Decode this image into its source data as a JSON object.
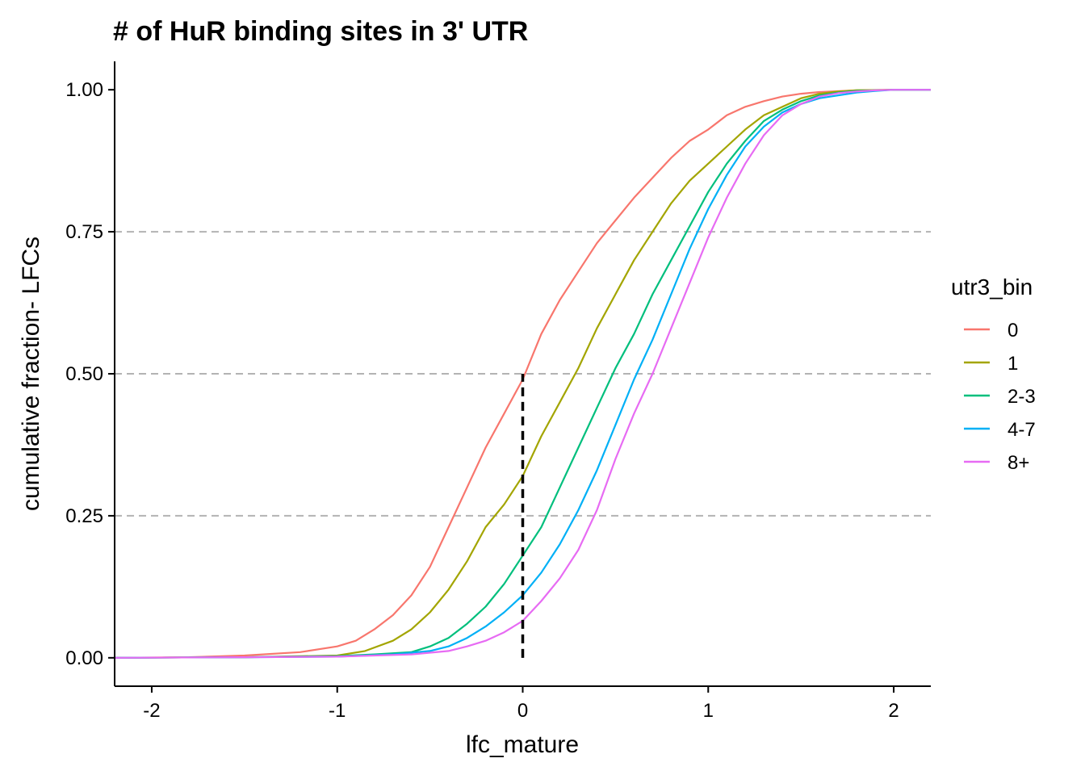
{
  "chart_data": {
    "type": "line",
    "title": "# of HuR binding sites in 3' UTR",
    "xlabel": "lfc_mature",
    "ylabel": "cumulative fraction- LFCs",
    "xlim": [
      -2.2,
      2.2
    ],
    "ylim": [
      -0.05,
      1.05
    ],
    "x_ticks": [
      -2,
      -1,
      0,
      1,
      2
    ],
    "x_tick_labels": [
      "-2",
      "-1",
      "0",
      "1",
      "2"
    ],
    "y_ticks": [
      0,
      0.25,
      0.5,
      0.75,
      1
    ],
    "y_tick_labels": [
      "0.00",
      "0.25",
      "0.50",
      "0.75",
      "1.00"
    ],
    "hlines": [
      0.25,
      0.5,
      0.75
    ],
    "reference_line": {
      "x": 0,
      "y_from": 0,
      "y_to": 0.5
    },
    "legend": {
      "title": "utr3_bin",
      "position": "right"
    },
    "series": [
      {
        "name": "0",
        "color": "#F8766D",
        "x": [
          -2.2,
          -1.8,
          -1.5,
          -1.2,
          -1.0,
          -0.9,
          -0.8,
          -0.7,
          -0.6,
          -0.5,
          -0.4,
          -0.3,
          -0.2,
          -0.1,
          0.0,
          0.1,
          0.2,
          0.3,
          0.4,
          0.5,
          0.6,
          0.7,
          0.8,
          0.9,
          1.0,
          1.1,
          1.2,
          1.3,
          1.4,
          1.5,
          1.6,
          1.8,
          2.0,
          2.2
        ],
        "y": [
          0.0,
          0.001,
          0.004,
          0.01,
          0.02,
          0.03,
          0.05,
          0.075,
          0.11,
          0.16,
          0.23,
          0.3,
          0.37,
          0.43,
          0.49,
          0.57,
          0.63,
          0.68,
          0.73,
          0.77,
          0.81,
          0.845,
          0.88,
          0.91,
          0.93,
          0.955,
          0.97,
          0.98,
          0.988,
          0.993,
          0.996,
          0.999,
          1.0,
          1.0
        ]
      },
      {
        "name": "1",
        "color": "#A3A500",
        "x": [
          -2.2,
          -1.5,
          -1.0,
          -0.85,
          -0.7,
          -0.6,
          -0.5,
          -0.4,
          -0.3,
          -0.2,
          -0.1,
          0.0,
          0.1,
          0.2,
          0.3,
          0.4,
          0.5,
          0.6,
          0.7,
          0.8,
          0.9,
          1.0,
          1.1,
          1.2,
          1.3,
          1.4,
          1.5,
          1.6,
          1.7,
          1.8,
          2.0,
          2.2
        ],
        "y": [
          0.0,
          0.001,
          0.004,
          0.012,
          0.03,
          0.05,
          0.08,
          0.12,
          0.17,
          0.23,
          0.27,
          0.32,
          0.39,
          0.45,
          0.51,
          0.58,
          0.64,
          0.7,
          0.75,
          0.8,
          0.84,
          0.87,
          0.9,
          0.93,
          0.955,
          0.97,
          0.985,
          0.993,
          0.997,
          0.999,
          1.0,
          1.0
        ]
      },
      {
        "name": "2-3",
        "color": "#00BF7D",
        "x": [
          -2.2,
          -1.5,
          -1.0,
          -0.8,
          -0.6,
          -0.5,
          -0.4,
          -0.3,
          -0.2,
          -0.1,
          0.0,
          0.1,
          0.2,
          0.3,
          0.4,
          0.5,
          0.6,
          0.7,
          0.8,
          0.9,
          1.0,
          1.1,
          1.2,
          1.3,
          1.4,
          1.5,
          1.6,
          1.7,
          1.8,
          2.0,
          2.2
        ],
        "y": [
          0.0,
          0.001,
          0.003,
          0.006,
          0.01,
          0.02,
          0.035,
          0.06,
          0.09,
          0.13,
          0.18,
          0.23,
          0.3,
          0.37,
          0.44,
          0.51,
          0.57,
          0.64,
          0.7,
          0.76,
          0.82,
          0.87,
          0.91,
          0.945,
          0.965,
          0.98,
          0.99,
          0.995,
          0.998,
          1.0,
          1.0
        ]
      },
      {
        "name": "4-7",
        "color": "#00B0F6",
        "x": [
          -2.2,
          -1.5,
          -1.0,
          -0.7,
          -0.5,
          -0.4,
          -0.3,
          -0.2,
          -0.1,
          0.0,
          0.1,
          0.2,
          0.3,
          0.4,
          0.5,
          0.6,
          0.7,
          0.8,
          0.9,
          1.0,
          1.1,
          1.2,
          1.3,
          1.4,
          1.5,
          1.6,
          1.7,
          1.8,
          1.9,
          2.0,
          2.2
        ],
        "y": [
          0.0,
          0.001,
          0.002,
          0.006,
          0.012,
          0.02,
          0.035,
          0.055,
          0.08,
          0.11,
          0.15,
          0.2,
          0.26,
          0.33,
          0.41,
          0.49,
          0.56,
          0.64,
          0.72,
          0.79,
          0.85,
          0.9,
          0.935,
          0.96,
          0.975,
          0.985,
          0.99,
          0.995,
          0.998,
          1.0,
          1.0
        ]
      },
      {
        "name": "8+",
        "color": "#E76BF3",
        "x": [
          -2.2,
          -1.5,
          -1.0,
          -0.6,
          -0.4,
          -0.3,
          -0.2,
          -0.1,
          0.0,
          0.1,
          0.2,
          0.3,
          0.4,
          0.5,
          0.6,
          0.7,
          0.8,
          0.9,
          1.0,
          1.1,
          1.2,
          1.3,
          1.4,
          1.5,
          1.6,
          1.7,
          1.8,
          1.9,
          2.0,
          2.2
        ],
        "y": [
          0.0,
          0.001,
          0.002,
          0.006,
          0.012,
          0.02,
          0.03,
          0.045,
          0.065,
          0.1,
          0.14,
          0.19,
          0.26,
          0.35,
          0.43,
          0.5,
          0.58,
          0.66,
          0.74,
          0.81,
          0.87,
          0.92,
          0.955,
          0.975,
          0.988,
          0.994,
          0.997,
          0.999,
          1.0,
          1.0
        ]
      }
    ]
  }
}
